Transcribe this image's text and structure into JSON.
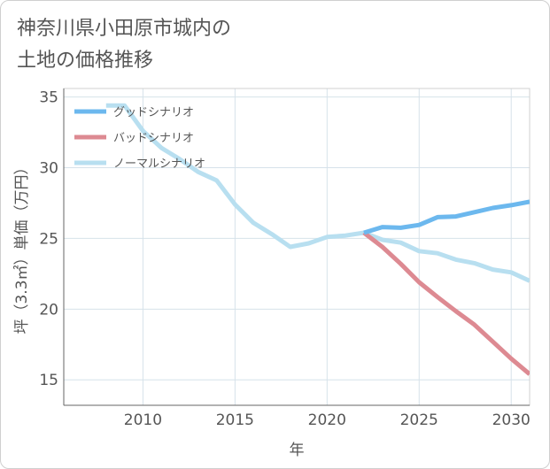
{
  "page": {
    "title": "神奈川県小田原市城内の\n土地の価格推移"
  },
  "colors": {
    "good": "#6cb8ee",
    "bad": "#dd8a92",
    "normal": "#b8dff0",
    "grid": "#d6e2ea",
    "frame": "#666666"
  },
  "chart_data": {
    "type": "line",
    "title": "神奈川県小田原市城内の土地の価格推移",
    "xlabel": "年",
    "ylabel": "坪（3.3㎡）単価（万円）",
    "xlim": [
      2005.7,
      2031
    ],
    "ylim": [
      13.2,
      35.6
    ],
    "xticks": [
      2010,
      2015,
      2020,
      2025,
      2030
    ],
    "yticks": [
      15,
      20,
      25,
      30,
      35
    ],
    "grid": true,
    "legend_position": "top-left",
    "series": [
      {
        "name": "グッドシナリオ",
        "color": "#6cb8ee",
        "x": [
          2022,
          2023,
          2024,
          2025,
          2026,
          2027,
          2028,
          2029,
          2030,
          2031
        ],
        "y": [
          25.4,
          25.8,
          25.75,
          25.95,
          26.5,
          26.55,
          26.85,
          27.15,
          27.35,
          27.6
        ]
      },
      {
        "name": "バッドシナリオ",
        "color": "#dd8a92",
        "x": [
          2022,
          2023,
          2024,
          2025,
          2026,
          2027,
          2028,
          2029,
          2030,
          2031
        ],
        "y": [
          25.4,
          24.4,
          23.2,
          21.9,
          20.85,
          19.85,
          18.9,
          17.7,
          16.5,
          15.4
        ]
      },
      {
        "name": "ノーマルシナリオ",
        "color": "#b8dff0",
        "x": [
          2008,
          2009,
          2010,
          2011,
          2012,
          2013,
          2014,
          2015,
          2016,
          2017,
          2018,
          2019,
          2020,
          2021,
          2022,
          2023,
          2024,
          2025,
          2026,
          2027,
          2028,
          2029,
          2030,
          2031
        ],
        "y": [
          34.4,
          34.4,
          32.6,
          31.4,
          30.6,
          29.7,
          29.1,
          27.4,
          26.1,
          25.3,
          24.4,
          24.65,
          25.1,
          25.2,
          25.4,
          24.9,
          24.7,
          24.1,
          23.95,
          23.5,
          23.25,
          22.8,
          22.6,
          22.0
        ]
      }
    ]
  }
}
